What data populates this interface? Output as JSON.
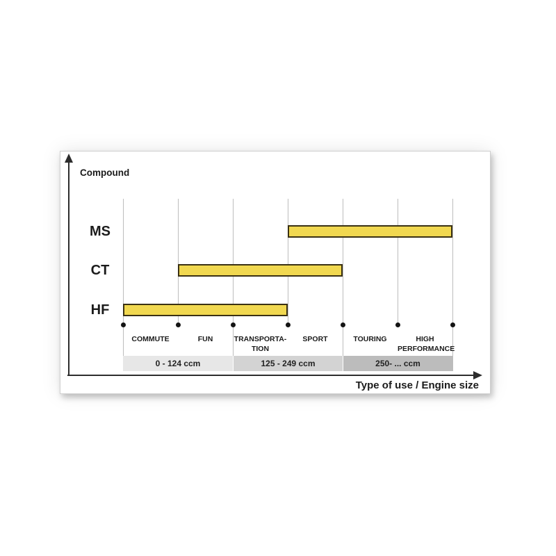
{
  "chart_data": {
    "type": "bar",
    "subtype": "horizontal-range",
    "y_axis_label": "Compound",
    "x_axis_label": "Type of use / Engine size",
    "grid": "vertical gridlines with dot markers at baseline",
    "legend_position": "none",
    "categories": [
      {
        "lines": [
          "COMMUTE"
        ]
      },
      {
        "lines": [
          "FUN"
        ]
      },
      {
        "lines": [
          "TRANSPORTA-",
          "TION"
        ]
      },
      {
        "lines": [
          "SPORT"
        ]
      },
      {
        "lines": [
          "TOURING"
        ]
      },
      {
        "lines": [
          "HIGH",
          "PERFORMANCE"
        ]
      }
    ],
    "rows": [
      {
        "label": "MS",
        "span_start": 3,
        "span_end": 6,
        "covers": [
          "SPORT",
          "TOURING",
          "HIGH PERFORMANCE"
        ]
      },
      {
        "label": "CT",
        "span_start": 1,
        "span_end": 4,
        "covers": [
          "FUN",
          "TRANSPORTATION",
          "SPORT"
        ]
      },
      {
        "label": "HF",
        "span_start": 0,
        "span_end": 3,
        "covers": [
          "COMMUTE",
          "FUN",
          "TRANSPORTATION"
        ]
      }
    ],
    "engine_size_bands": [
      {
        "label": "0 - 124 ccm",
        "span_start": 0,
        "span_end": 2,
        "color": "#e7e7e7"
      },
      {
        "label": "125 - 249 ccm",
        "span_start": 2,
        "span_end": 4,
        "color": "#d3d3d3"
      },
      {
        "label": "250- ... ccm",
        "span_start": 4,
        "span_end": 6,
        "color": "#bcbcbc"
      }
    ]
  },
  "colors": {
    "bar_fill": "#f1d850",
    "bar_border": "#3a3114",
    "gridline": "#bdbdbd",
    "axis": "#2d2d2d",
    "text": "#1b1b1b",
    "dot": "#141414",
    "panel_border": "#cfcfcf",
    "panel_background": "#ffffff",
    "page_background": "#ffffff"
  }
}
